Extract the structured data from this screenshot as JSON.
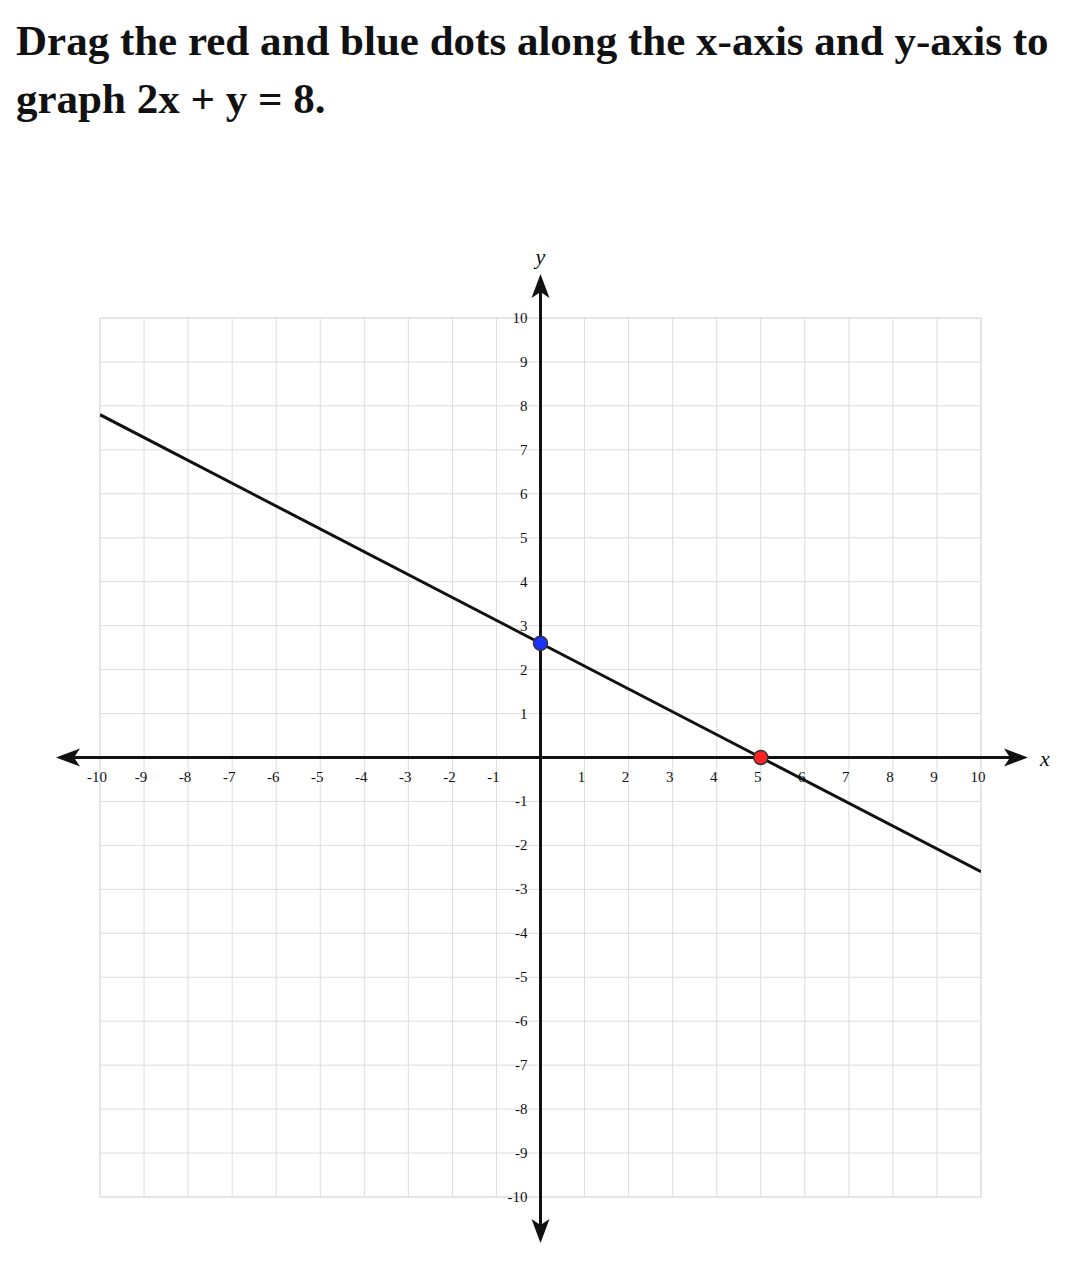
{
  "chart_data": {
    "type": "line",
    "title": "Drag the red and blue dots along the x-axis and y-axis to graph 2x + y = 8.",
    "x_label": "x",
    "y_label": "y",
    "xlim": [
      -10,
      10
    ],
    "ylim": [
      -10,
      10
    ],
    "xticks": [
      -10,
      -9,
      -8,
      -7,
      -6,
      -5,
      -4,
      -3,
      -2,
      -1,
      1,
      2,
      3,
      4,
      5,
      6,
      7,
      8,
      9,
      10
    ],
    "yticks": [
      -10,
      -9,
      -8,
      -7,
      -6,
      -5,
      -4,
      -3,
      -2,
      -1,
      1,
      2,
      3,
      4,
      5,
      6,
      7,
      8,
      9,
      10
    ],
    "grid": true,
    "series": [
      {
        "x": [
          0,
          5
        ],
        "values": [
          2.6,
          0
        ],
        "colors": [
          "#1a33ff",
          "#ff2222"
        ],
        "color": "#111111",
        "marker": "circle"
      }
    ]
  }
}
